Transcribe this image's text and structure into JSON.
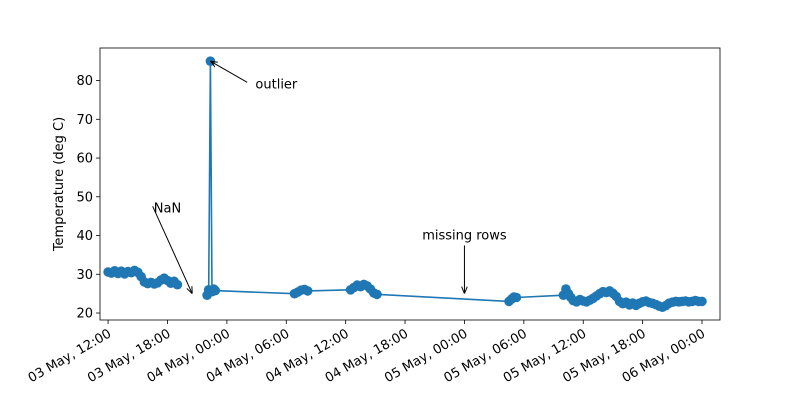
{
  "chart_data": {
    "type": "line",
    "title": "",
    "xlabel": "",
    "ylabel": "Temperature (deg C)",
    "x_axis_type": "datetime",
    "xlim": [
      "2024-05-03T11:11",
      "2024-05-06T01:49"
    ],
    "ylim": [
      18.2,
      88.4
    ],
    "yticks": [
      20,
      30,
      40,
      50,
      60,
      70,
      80
    ],
    "xticks": [
      {
        "t": "2024-05-03T12:00",
        "label": "03 May, 12:00"
      },
      {
        "t": "2024-05-03T18:00",
        "label": "03 May, 18:00"
      },
      {
        "t": "2024-05-04T00:00",
        "label": "04 May, 00:00"
      },
      {
        "t": "2024-05-04T06:00",
        "label": "04 May, 06:00"
      },
      {
        "t": "2024-05-04T12:00",
        "label": "04 May, 12:00"
      },
      {
        "t": "2024-05-04T18:00",
        "label": "04 May, 18:00"
      },
      {
        "t": "2024-05-05T00:00",
        "label": "05 May, 00:00"
      },
      {
        "t": "2024-05-05T06:00",
        "label": "05 May, 06:00"
      },
      {
        "t": "2024-05-05T12:00",
        "label": "05 May, 12:00"
      },
      {
        "t": "2024-05-05T18:00",
        "label": "05 May, 18:00"
      },
      {
        "t": "2024-05-06T00:00",
        "label": "06 May, 00:00"
      }
    ],
    "grid": false,
    "legend": "none",
    "series": [
      {
        "color": "#1f77b4",
        "segments": [
          [
            [
              "2024-05-03T12:00",
              30.6
            ],
            [
              "2024-05-03T12:20",
              30.3
            ],
            [
              "2024-05-03T12:40",
              30.9
            ],
            [
              "2024-05-03T13:00",
              30.2
            ],
            [
              "2024-05-03T13:20",
              30.8
            ],
            [
              "2024-05-03T13:40",
              30.1
            ],
            [
              "2024-05-03T14:00",
              30.7
            ],
            [
              "2024-05-03T14:20",
              30.4
            ],
            [
              "2024-05-03T14:40",
              31.0
            ],
            [
              "2024-05-03T15:00",
              30.5
            ],
            [
              "2024-05-03T15:20",
              29.4
            ],
            [
              "2024-05-03T15:40",
              28.0
            ],
            [
              "2024-05-03T16:00",
              27.6
            ],
            [
              "2024-05-03T16:20",
              27.9
            ],
            [
              "2024-05-03T16:40",
              27.5
            ],
            [
              "2024-05-03T17:00",
              27.8
            ],
            [
              "2024-05-03T17:20",
              28.5
            ],
            [
              "2024-05-03T17:40",
              29.0
            ],
            [
              "2024-05-03T18:00",
              28.4
            ],
            [
              "2024-05-03T18:20",
              27.7
            ],
            [
              "2024-05-03T18:40",
              28.2
            ],
            [
              "2024-05-03T19:00",
              27.3
            ]
          ],
          [
            [
              "2024-05-03T22:00",
              24.6
            ],
            [
              "2024-05-03T22:10",
              26.0
            ],
            [
              "2024-05-03T22:20",
              85.0
            ],
            [
              "2024-05-03T22:30",
              25.5
            ],
            [
              "2024-05-03T22:40",
              26.2
            ],
            [
              "2024-05-03T22:50",
              25.8
            ],
            [
              "2024-05-04T06:50",
              25.0
            ],
            [
              "2024-05-04T07:10",
              25.4
            ],
            [
              "2024-05-04T07:30",
              25.9
            ],
            [
              "2024-05-04T07:50",
              26.1
            ],
            [
              "2024-05-04T08:10",
              25.7
            ],
            [
              "2024-05-04T12:30",
              26.0
            ],
            [
              "2024-05-04T12:50",
              26.6
            ],
            [
              "2024-05-04T13:10",
              27.2
            ],
            [
              "2024-05-04T13:30",
              26.8
            ],
            [
              "2024-05-04T13:50",
              27.4
            ],
            [
              "2024-05-04T14:10",
              27.0
            ],
            [
              "2024-05-04T14:30",
              26.2
            ],
            [
              "2024-05-04T14:50",
              25.2
            ],
            [
              "2024-05-04T15:10",
              24.8
            ],
            [
              "2024-05-05T04:30",
              23.0
            ],
            [
              "2024-05-05T04:45",
              23.6
            ],
            [
              "2024-05-05T05:00",
              24.1
            ],
            [
              "2024-05-05T05:15",
              24.0
            ],
            [
              "2024-05-05T10:00",
              24.6
            ],
            [
              "2024-05-05T10:15",
              26.2
            ],
            [
              "2024-05-05T10:30",
              25.0
            ],
            [
              "2024-05-05T10:45",
              24.0
            ],
            [
              "2024-05-05T11:00",
              23.2
            ],
            [
              "2024-05-05T11:20",
              22.9
            ],
            [
              "2024-05-05T11:40",
              23.5
            ],
            [
              "2024-05-05T12:00",
              23.1
            ],
            [
              "2024-05-05T12:20",
              22.9
            ],
            [
              "2024-05-05T12:40",
              23.3
            ],
            [
              "2024-05-05T13:00",
              23.8
            ],
            [
              "2024-05-05T13:20",
              24.4
            ],
            [
              "2024-05-05T13:40",
              25.0
            ],
            [
              "2024-05-05T14:00",
              25.5
            ],
            [
              "2024-05-05T14:20",
              25.3
            ],
            [
              "2024-05-05T14:40",
              25.7
            ],
            [
              "2024-05-05T15:00",
              25.1
            ],
            [
              "2024-05-05T15:20",
              24.3
            ],
            [
              "2024-05-05T15:40",
              23.0
            ],
            [
              "2024-05-05T16:00",
              22.4
            ],
            [
              "2024-05-05T16:20",
              22.8
            ],
            [
              "2024-05-05T16:40",
              22.1
            ],
            [
              "2024-05-05T17:00",
              22.6
            ],
            [
              "2024-05-05T17:20",
              22.0
            ],
            [
              "2024-05-05T17:40",
              22.5
            ],
            [
              "2024-05-05T18:00",
              22.9
            ],
            [
              "2024-05-05T18:20",
              23.1
            ],
            [
              "2024-05-05T18:40",
              22.7
            ],
            [
              "2024-05-05T19:00",
              22.5
            ],
            [
              "2024-05-05T19:20",
              22.2
            ],
            [
              "2024-05-05T19:40",
              21.8
            ],
            [
              "2024-05-05T20:00",
              21.5
            ],
            [
              "2024-05-05T20:20",
              21.9
            ],
            [
              "2024-05-05T20:40",
              22.5
            ],
            [
              "2024-05-05T21:00",
              22.8
            ],
            [
              "2024-05-05T21:20",
              23.0
            ],
            [
              "2024-05-05T21:40",
              22.9
            ],
            [
              "2024-05-05T22:00",
              23.0
            ],
            [
              "2024-05-05T22:20",
              23.1
            ],
            [
              "2024-05-05T22:40",
              22.9
            ],
            [
              "2024-05-05T23:00",
              23.0
            ],
            [
              "2024-05-05T23:20",
              23.2
            ],
            [
              "2024-05-05T23:40",
              23.0
            ],
            [
              "2024-05-06T00:00",
              23.0
            ]
          ]
        ]
      }
    ],
    "annotations": [
      {
        "text": "outlier",
        "point": [
          "2024-05-03T22:20",
          85.0
        ],
        "text_at": [
          "2024-05-04T05:00",
          78.0
        ]
      },
      {
        "text": "NaN",
        "point": [
          "2024-05-03T20:30",
          25.0
        ],
        "text_at": [
          "2024-05-03T18:00",
          46.0
        ]
      },
      {
        "text": "missing rows",
        "point": [
          "2024-05-05T00:00",
          25.0
        ],
        "text_at": [
          "2024-05-05T00:00",
          39.0
        ]
      }
    ]
  }
}
